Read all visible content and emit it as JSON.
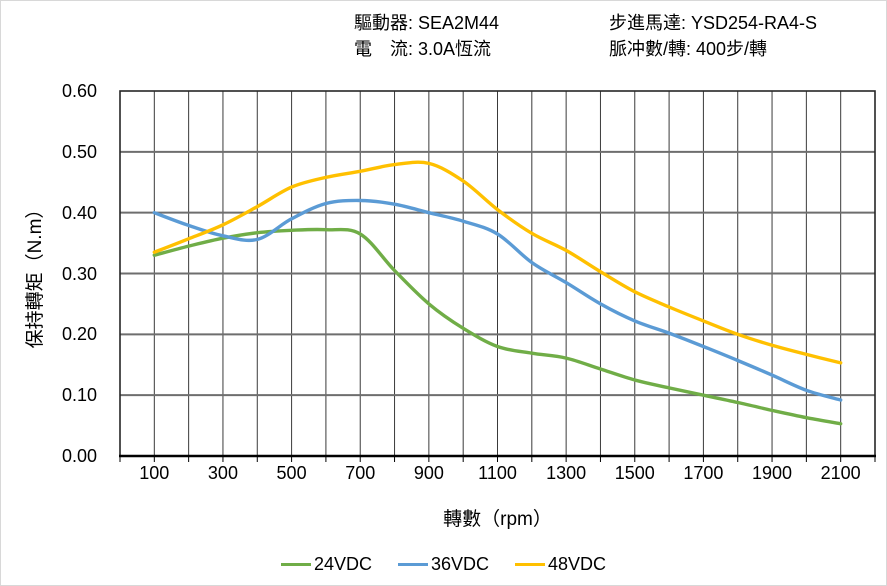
{
  "header": {
    "line1_left": "驅動器: SEA2M44",
    "line2_left": "電　流: 3.0A恆流",
    "line1_right": "步進馬達: YSD254-RA4-S",
    "line2_right": "脈冲數/轉: 400步/轉"
  },
  "chart_data": {
    "type": "line",
    "x": [
      100,
      200,
      300,
      400,
      500,
      600,
      700,
      800,
      900,
      1000,
      1100,
      1200,
      1300,
      1400,
      1500,
      1600,
      1700,
      1800,
      1900,
      2000,
      2100
    ],
    "series": [
      {
        "name": "24VDC",
        "color": "#70AD47",
        "values": [
          0.33,
          0.345,
          0.358,
          0.367,
          0.371,
          0.372,
          0.365,
          0.305,
          0.25,
          0.21,
          0.18,
          0.169,
          0.161,
          0.143,
          0.125,
          0.112,
          0.1,
          0.088,
          0.075,
          0.063,
          0.053
        ]
      },
      {
        "name": "36VDC",
        "color": "#5B9BD5",
        "values": [
          0.4,
          0.379,
          0.362,
          0.356,
          0.39,
          0.415,
          0.42,
          0.414,
          0.4,
          0.386,
          0.365,
          0.318,
          0.285,
          0.25,
          0.222,
          0.202,
          0.18,
          0.157,
          0.133,
          0.108,
          0.092
        ]
      },
      {
        "name": "48VDC",
        "color": "#FFC000",
        "values": [
          0.335,
          0.357,
          0.38,
          0.41,
          0.442,
          0.458,
          0.468,
          0.479,
          0.481,
          0.452,
          0.405,
          0.366,
          0.338,
          0.303,
          0.27,
          0.245,
          0.222,
          0.2,
          0.182,
          0.167,
          0.153
        ]
      }
    ],
    "title": "",
    "xlabel": "轉數（rpm）",
    "ylabel": "保持轉矩（N.m）",
    "xlim": [
      0,
      2200
    ],
    "ylim": [
      0,
      0.6
    ],
    "x_tick_labels": [
      "100",
      "300",
      "500",
      "700",
      "900",
      "1100",
      "1300",
      "1500",
      "1700",
      "1900",
      "2100"
    ],
    "x_tick_values": [
      100,
      300,
      500,
      700,
      900,
      1100,
      1300,
      1500,
      1700,
      1900,
      2100
    ],
    "y_tick_labels": [
      "0.00",
      "0.10",
      "0.20",
      "0.30",
      "0.40",
      "0.50",
      "0.60"
    ],
    "y_tick_values": [
      0.0,
      0.1,
      0.2,
      0.3,
      0.4,
      0.5,
      0.6
    ],
    "x_minor_grid_step": 100,
    "y_major_grid_step": 0.1,
    "grid": true,
    "legend_position": "bottom",
    "colors": {
      "vertical_grid": "#3a3a3a",
      "horizontal_grid": "#6e6e6e",
      "frame": "#262626",
      "axis": "#000000"
    }
  }
}
